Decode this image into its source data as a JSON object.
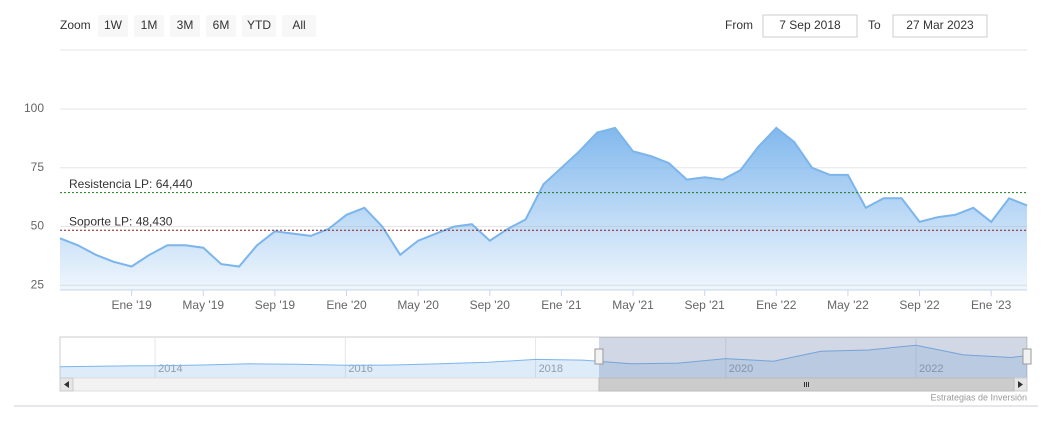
{
  "controls": {
    "zoom_label": "Zoom",
    "zoom_buttons": [
      "1W",
      "1M",
      "3M",
      "6M",
      "YTD",
      "All"
    ],
    "from_label": "From",
    "from_date": "7 Sep 2018",
    "to_label": "To",
    "to_date": "27 Mar 2023"
  },
  "credits": "Estrategias de Inversión",
  "chart_data": [
    {
      "type": "area",
      "color": "#7cb5ec",
      "grid": true,
      "x": [
        "2018-09",
        "2018-10",
        "2018-11",
        "2018-12",
        "2019-01",
        "2019-02",
        "2019-03",
        "2019-04",
        "2019-05",
        "2019-06",
        "2019-07",
        "2019-08",
        "2019-09",
        "2019-10",
        "2019-11",
        "2019-12",
        "2020-01",
        "2020-02",
        "2020-03",
        "2020-04",
        "2020-05",
        "2020-06",
        "2020-07",
        "2020-08",
        "2020-09",
        "2020-10",
        "2020-11",
        "2020-12",
        "2021-01",
        "2021-02",
        "2021-03",
        "2021-04",
        "2021-05",
        "2021-06",
        "2021-07",
        "2021-08",
        "2021-09",
        "2021-10",
        "2021-11",
        "2021-12",
        "2022-01",
        "2022-02",
        "2022-03",
        "2022-04",
        "2022-05",
        "2022-06",
        "2022-07",
        "2022-08",
        "2022-09",
        "2022-10",
        "2022-11",
        "2022-12",
        "2023-01",
        "2023-02",
        "2023-03"
      ],
      "series": [
        {
          "color": "#7cb5ec",
          "values": [
            45,
            42,
            38,
            35,
            33,
            38,
            42,
            42,
            41,
            34,
            33,
            42,
            48,
            47,
            46,
            49,
            55,
            58,
            50,
            38,
            44,
            47,
            50,
            51,
            44,
            49,
            53,
            68,
            75,
            82,
            90,
            92,
            82,
            80,
            77,
            70,
            71,
            70,
            74,
            84,
            92,
            86,
            75,
            72,
            72,
            58,
            62,
            62,
            52,
            54,
            55,
            58,
            52,
            62,
            59
          ]
        }
      ],
      "xlim": [
        "2018-09",
        "2023-03"
      ],
      "xticks": [
        {
          "value": "2019-01",
          "label": "Ene '19"
        },
        {
          "value": "2019-05",
          "label": "May '19"
        },
        {
          "value": "2019-09",
          "label": "Sep '19"
        },
        {
          "value": "2020-01",
          "label": "Ene '20"
        },
        {
          "value": "2020-05",
          "label": "May '20"
        },
        {
          "value": "2020-09",
          "label": "Sep '20"
        },
        {
          "value": "2021-01",
          "label": "Ene '21"
        },
        {
          "value": "2021-05",
          "label": "May '21"
        },
        {
          "value": "2021-09",
          "label": "Sep '21"
        },
        {
          "value": "2022-01",
          "label": "Ene '22"
        },
        {
          "value": "2022-05",
          "label": "May '22"
        },
        {
          "value": "2022-09",
          "label": "Sep '22"
        },
        {
          "value": "2023-01",
          "label": "Ene '23"
        }
      ],
      "ylim": [
        23,
        123
      ],
      "yticks": [
        25,
        50,
        75,
        100
      ],
      "plot_lines": [
        {
          "value": 64.44,
          "label": "Resistencia LP: 64,440",
          "color": "#1f7a1f"
        },
        {
          "value": 48.43,
          "label": "Soporte LP: 48,430",
          "color": "#8b1a1a"
        }
      ]
    },
    {
      "type": "navigator",
      "color": "#7cb5ec",
      "x": [
        "2013-01",
        "2013-07",
        "2014-01",
        "2014-07",
        "2015-01",
        "2015-07",
        "2016-01",
        "2016-07",
        "2017-01",
        "2017-07",
        "2018-01",
        "2018-07",
        "2019-01",
        "2019-07",
        "2020-01",
        "2020-07",
        "2021-01",
        "2021-07",
        "2022-01",
        "2022-07",
        "2023-01",
        "2023-03"
      ],
      "values": [
        30,
        32,
        33,
        35,
        38,
        37,
        34,
        35,
        38,
        42,
        50,
        48,
        38,
        40,
        52,
        45,
        72,
        75,
        88,
        62,
        55,
        60
      ],
      "xlim": [
        "2013-01",
        "2023-03"
      ],
      "ylim": [
        0,
        110
      ],
      "xticks": [
        {
          "value": "2014-01",
          "label": "2014"
        },
        {
          "value": "2016-01",
          "label": "2016"
        },
        {
          "value": "2018-01",
          "label": "2018"
        },
        {
          "value": "2020-01",
          "label": "2020"
        },
        {
          "value": "2022-01",
          "label": "2022"
        }
      ],
      "selection": [
        "2018-09",
        "2023-03"
      ]
    }
  ]
}
